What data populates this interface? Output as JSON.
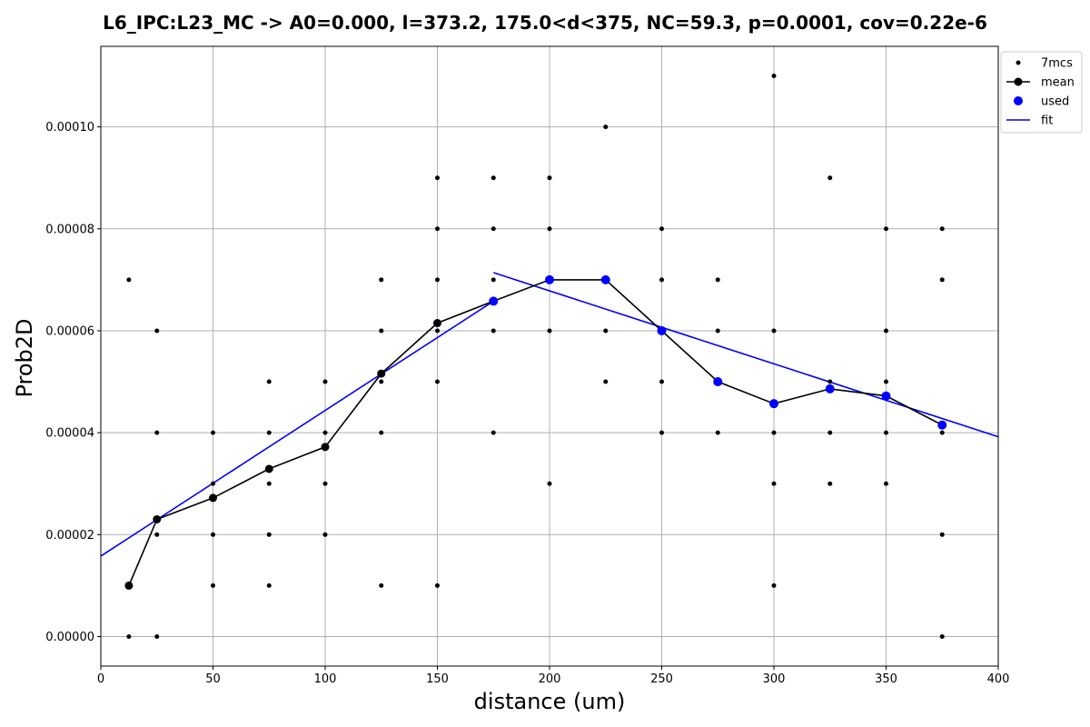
{
  "chart_data": {
    "type": "scatter",
    "title": "L6_IPC:L23_MC -> A0=0.000, l=373.2, 175.0<d<375, NC=59.3, p=0.0001, cov=0.22e-6",
    "xlabel": "distance (um)",
    "ylabel": "Prob2D",
    "xlim": [
      0,
      400
    ],
    "ylim": [
      -5.8e-06,
      0.0001158
    ],
    "x_ticks": [
      0,
      50,
      100,
      150,
      200,
      250,
      300,
      350,
      400
    ],
    "x_tick_labels": [
      "0",
      "50",
      "100",
      "150",
      "200",
      "250",
      "300",
      "350",
      "400"
    ],
    "y_ticks": [
      0,
      2e-05,
      4e-05,
      6e-05,
      8e-05,
      0.0001
    ],
    "y_tick_labels": [
      "0.00000",
      "0.00002",
      "0.00004",
      "0.00006",
      "0.00008",
      "0.00010"
    ],
    "grid": true,
    "legend_position": "top-right",
    "colors": {
      "points": "#000000",
      "mean": "#000000",
      "used": "#0000ff",
      "fit": "#0000ff"
    },
    "series": [
      {
        "name": "7mcs",
        "style": "points",
        "points": [
          [
            12.5,
            7e-05
          ],
          [
            12.5,
            1e-05
          ],
          [
            12.5,
            0.0
          ],
          [
            25,
            6e-05
          ],
          [
            25,
            4e-05
          ],
          [
            25,
            2e-05
          ],
          [
            25,
            0.0
          ],
          [
            50,
            4e-05
          ],
          [
            50,
            3e-05
          ],
          [
            50,
            2e-05
          ],
          [
            50,
            1e-05
          ],
          [
            75,
            5e-05
          ],
          [
            75,
            4e-05
          ],
          [
            75,
            3e-05
          ],
          [
            75,
            2e-05
          ],
          [
            75,
            1e-05
          ],
          [
            100,
            5e-05
          ],
          [
            100,
            4e-05
          ],
          [
            100,
            3e-05
          ],
          [
            100,
            2e-05
          ],
          [
            125,
            7e-05
          ],
          [
            125,
            6e-05
          ],
          [
            125,
            5e-05
          ],
          [
            125,
            4e-05
          ],
          [
            125,
            1e-05
          ],
          [
            150,
            9e-05
          ],
          [
            150,
            8e-05
          ],
          [
            150,
            7e-05
          ],
          [
            150,
            6e-05
          ],
          [
            150,
            5e-05
          ],
          [
            150,
            1e-05
          ],
          [
            175,
            9e-05
          ],
          [
            175,
            8e-05
          ],
          [
            175,
            7e-05
          ],
          [
            175,
            6e-05
          ],
          [
            175,
            4e-05
          ],
          [
            200,
            9e-05
          ],
          [
            200,
            8e-05
          ],
          [
            200,
            6e-05
          ],
          [
            200,
            3e-05
          ],
          [
            225,
            0.0001
          ],
          [
            225,
            6e-05
          ],
          [
            225,
            5e-05
          ],
          [
            250,
            8e-05
          ],
          [
            250,
            7e-05
          ],
          [
            250,
            5e-05
          ],
          [
            250,
            4e-05
          ],
          [
            275,
            7e-05
          ],
          [
            275,
            6e-05
          ],
          [
            275,
            4e-05
          ],
          [
            300,
            0.00011
          ],
          [
            300,
            6e-05
          ],
          [
            300,
            4e-05
          ],
          [
            300,
            3e-05
          ],
          [
            300,
            1e-05
          ],
          [
            325,
            9e-05
          ],
          [
            325,
            5e-05
          ],
          [
            325,
            4e-05
          ],
          [
            325,
            3e-05
          ],
          [
            350,
            8e-05
          ],
          [
            350,
            6e-05
          ],
          [
            350,
            5e-05
          ],
          [
            350,
            4e-05
          ],
          [
            350,
            3e-05
          ],
          [
            375,
            8e-05
          ],
          [
            375,
            7e-05
          ],
          [
            375,
            4e-05
          ],
          [
            375,
            2e-05
          ],
          [
            375,
            0.0
          ]
        ]
      },
      {
        "name": "mean",
        "style": "line+markers",
        "points": [
          [
            12.5,
            1e-05
          ],
          [
            25,
            2.3e-05
          ],
          [
            50,
            2.72e-05
          ],
          [
            75,
            3.29e-05
          ],
          [
            100,
            3.72e-05
          ],
          [
            125,
            5.16e-05
          ],
          [
            150,
            6.15e-05
          ],
          [
            175,
            6.58e-05
          ],
          [
            200,
            7e-05
          ],
          [
            225,
            7e-05
          ],
          [
            250,
            6e-05
          ],
          [
            275,
            5e-05
          ],
          [
            300,
            4.57e-05
          ],
          [
            325,
            4.86e-05
          ],
          [
            350,
            4.72e-05
          ],
          [
            375,
            4.15e-05
          ]
        ]
      },
      {
        "name": "used",
        "style": "markers",
        "points": [
          [
            175,
            6.58e-05
          ],
          [
            200,
            7e-05
          ],
          [
            225,
            7e-05
          ],
          [
            250,
            6e-05
          ],
          [
            275,
            5e-05
          ],
          [
            300,
            4.57e-05
          ],
          [
            325,
            4.86e-05
          ],
          [
            350,
            4.72e-05
          ],
          [
            375,
            4.15e-05
          ]
        ]
      },
      {
        "name": "fit",
        "style": "line",
        "segments": [
          [
            [
              0,
              1.58e-05
            ],
            [
              175,
              6.58e-05
            ]
          ],
          [
            [
              175,
              7.14e-05
            ],
            [
              400,
              3.92e-05
            ]
          ]
        ]
      }
    ]
  }
}
